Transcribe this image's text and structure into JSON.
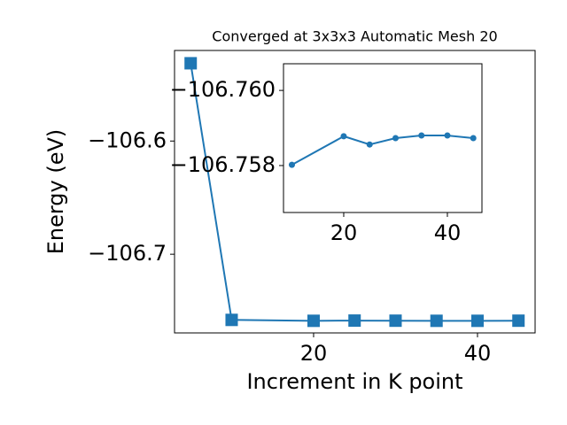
{
  "chart_data": [
    {
      "type": "line",
      "title": "Converged at 3x3x3 Automatic Mesh 20",
      "x_label": "Increment in K point",
      "y_label": "Energy (eV)",
      "x": [
        5,
        10,
        20,
        25,
        30,
        35,
        40,
        45
      ],
      "series": [
        {
          "color": "#1f77b4",
          "marker": "square",
          "values": [
            -106.5313,
            -106.758,
            -106.7588,
            -106.7586,
            -106.7587,
            -106.7588,
            -106.7588,
            -106.7587
          ]
        }
      ],
      "xlim": [
        3.03,
        47.03
      ],
      "ylim": [
        -106.7695,
        -106.52
      ],
      "xticks": [
        20,
        40
      ],
      "yticks": [
        {
          "value": -106.6,
          "label": "−106.6"
        },
        {
          "value": -106.7,
          "label": "−106.7"
        }
      ]
    },
    {
      "type": "line",
      "x": [
        10,
        20,
        25,
        30,
        35,
        40,
        45
      ],
      "series": [
        {
          "color": "#1f77b4",
          "marker": "circle",
          "values": [
            -106.75802,
            -106.75878,
            -106.75856,
            -106.75873,
            -106.7588,
            -106.7588,
            -106.75873
          ]
        }
      ],
      "xlim": [
        8.38,
        46.67
      ],
      "ylim": [
        -106.75675,
        -106.76071
      ],
      "xticks": [
        20,
        40
      ],
      "yticks": [
        {
          "value": -106.76,
          "label": "−106.760"
        },
        {
          "value": -106.758,
          "label": "−106.758"
        }
      ]
    }
  ]
}
